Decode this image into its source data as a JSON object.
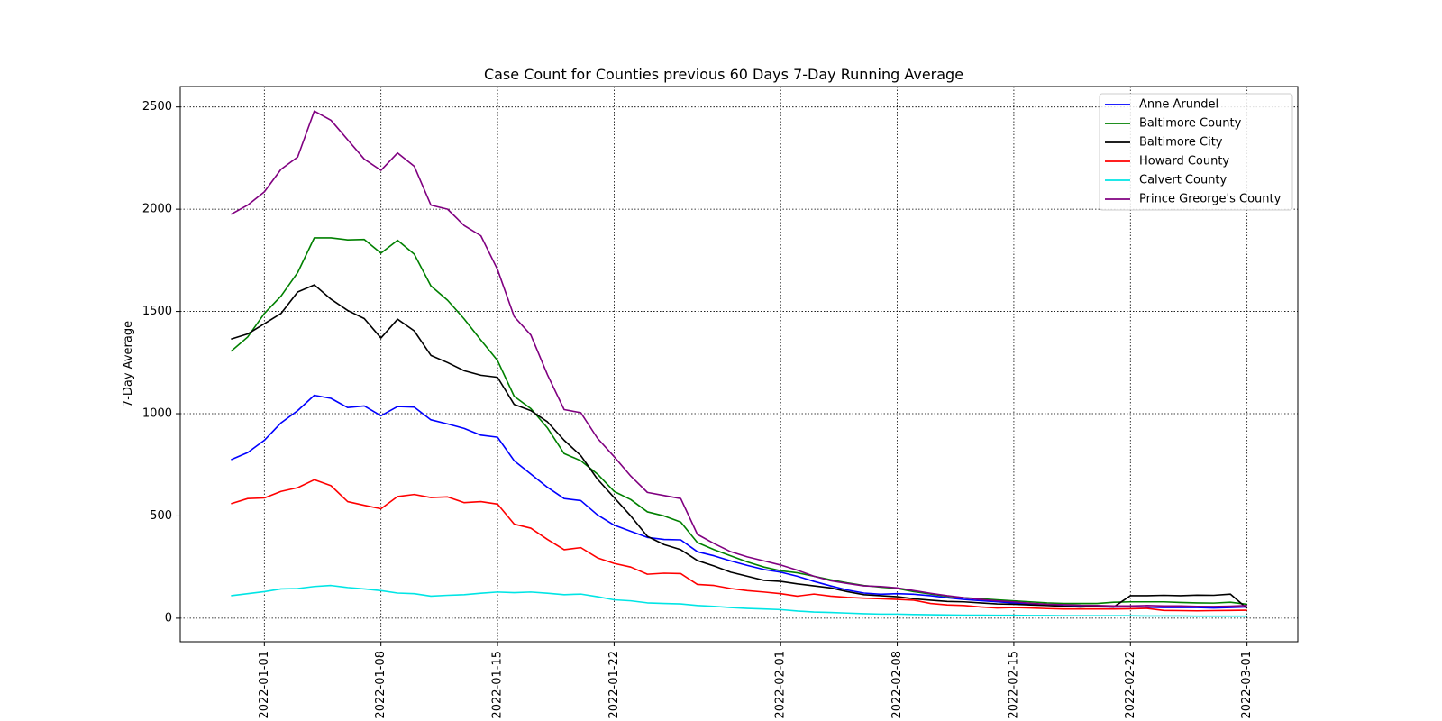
{
  "chart_data": {
    "type": "line",
    "title": "Case Count for Counties previous 60 Days 7-Day Running Average",
    "xlabel": "",
    "ylabel": "7-Day Average",
    "x_start": "2021-12-30",
    "x_tick_labels": [
      "2022-01-01",
      "2022-01-08",
      "2022-01-15",
      "2022-01-22",
      "2022-02-01",
      "2022-02-08",
      "2022-02-15",
      "2022-02-22",
      "2022-03-01"
    ],
    "y_ticks": [
      0,
      500,
      1000,
      1500,
      2000,
      2500
    ],
    "ylim": [
      -115,
      2600
    ],
    "grid": true,
    "legend_position": "top-right",
    "series": [
      {
        "name": "Anne Arundel",
        "color": "#0000ff",
        "values": [
          775,
          810,
          870,
          955,
          1015,
          1090,
          1075,
          1030,
          1038,
          990,
          1035,
          1032,
          970,
          950,
          928,
          895,
          885,
          770,
          705,
          640,
          585,
          575,
          505,
          455,
          425,
          395,
          385,
          383,
          325,
          305,
          280,
          258,
          238,
          225,
          205,
          180,
          158,
          138,
          123,
          117,
          120,
          117,
          110,
          100,
          92,
          86,
          80,
          75,
          70,
          65,
          60,
          58,
          56,
          55,
          56,
          54,
          52,
          52,
          52,
          50,
          52,
          55
        ]
      },
      {
        "name": "Baltimore County",
        "color": "#008000",
        "values": [
          1305,
          1375,
          1490,
          1575,
          1690,
          1860,
          1860,
          1850,
          1852,
          1785,
          1848,
          1780,
          1625,
          1555,
          1463,
          1360,
          1260,
          1085,
          1025,
          930,
          805,
          770,
          705,
          620,
          580,
          520,
          500,
          470,
          370,
          335,
          305,
          275,
          250,
          232,
          222,
          205,
          188,
          173,
          160,
          152,
          145,
          130,
          118,
          107,
          100,
          95,
          90,
          85,
          80,
          75,
          72,
          72,
          72,
          78,
          80,
          80,
          80,
          77,
          75,
          74,
          78,
          68
        ]
      },
      {
        "name": "Baltimore City",
        "color": "#000000",
        "values": [
          1365,
          1390,
          1440,
          1490,
          1595,
          1630,
          1560,
          1505,
          1465,
          1370,
          1462,
          1405,
          1285,
          1250,
          1210,
          1188,
          1178,
          1045,
          1015,
          960,
          870,
          795,
          680,
          590,
          500,
          400,
          360,
          335,
          282,
          255,
          225,
          205,
          185,
          180,
          168,
          158,
          148,
          130,
          115,
          110,
          105,
          95,
          88,
          82,
          80,
          75,
          70,
          68,
          65,
          62,
          58,
          55,
          58,
          55,
          110,
          110,
          112,
          110,
          113,
          112,
          118,
          48
        ]
      },
      {
        "name": "Howard County",
        "color": "#ff0000",
        "values": [
          560,
          585,
          588,
          620,
          638,
          677,
          648,
          570,
          552,
          535,
          595,
          605,
          590,
          593,
          565,
          570,
          558,
          460,
          440,
          385,
          335,
          345,
          295,
          268,
          250,
          215,
          220,
          218,
          165,
          160,
          145,
          135,
          128,
          120,
          108,
          118,
          108,
          102,
          98,
          95,
          92,
          88,
          72,
          65,
          62,
          55,
          50,
          52,
          50,
          47,
          45,
          45,
          45,
          45,
          46,
          48,
          38,
          37,
          36,
          37,
          38,
          39
        ]
      },
      {
        "name": "Calvert County",
        "color": "#00e5e5",
        "values": [
          110,
          120,
          130,
          143,
          145,
          155,
          160,
          150,
          143,
          135,
          123,
          120,
          108,
          112,
          115,
          122,
          128,
          125,
          128,
          122,
          115,
          118,
          105,
          90,
          85,
          75,
          72,
          70,
          62,
          58,
          52,
          48,
          45,
          42,
          35,
          30,
          28,
          25,
          22,
          20,
          20,
          18,
          17,
          16,
          15,
          15,
          14,
          14,
          13,
          13,
          12,
          12,
          12,
          12,
          12,
          11,
          11,
          11,
          10,
          10,
          10,
          10
        ]
      },
      {
        "name": "Prince Greorge's County",
        "color": "#800080",
        "values": [
          1975,
          2020,
          2085,
          2195,
          2255,
          2480,
          2435,
          2340,
          2245,
          2190,
          2275,
          2210,
          2020,
          2000,
          1920,
          1870,
          1705,
          1475,
          1385,
          1190,
          1020,
          1005,
          880,
          790,
          695,
          615,
          600,
          585,
          410,
          365,
          325,
          300,
          280,
          260,
          235,
          205,
          183,
          170,
          158,
          155,
          148,
          135,
          122,
          110,
          100,
          92,
          85,
          80,
          73,
          68,
          66,
          63,
          62,
          60,
          60,
          62,
          60,
          60,
          58,
          57,
          59,
          62
        ]
      }
    ]
  }
}
